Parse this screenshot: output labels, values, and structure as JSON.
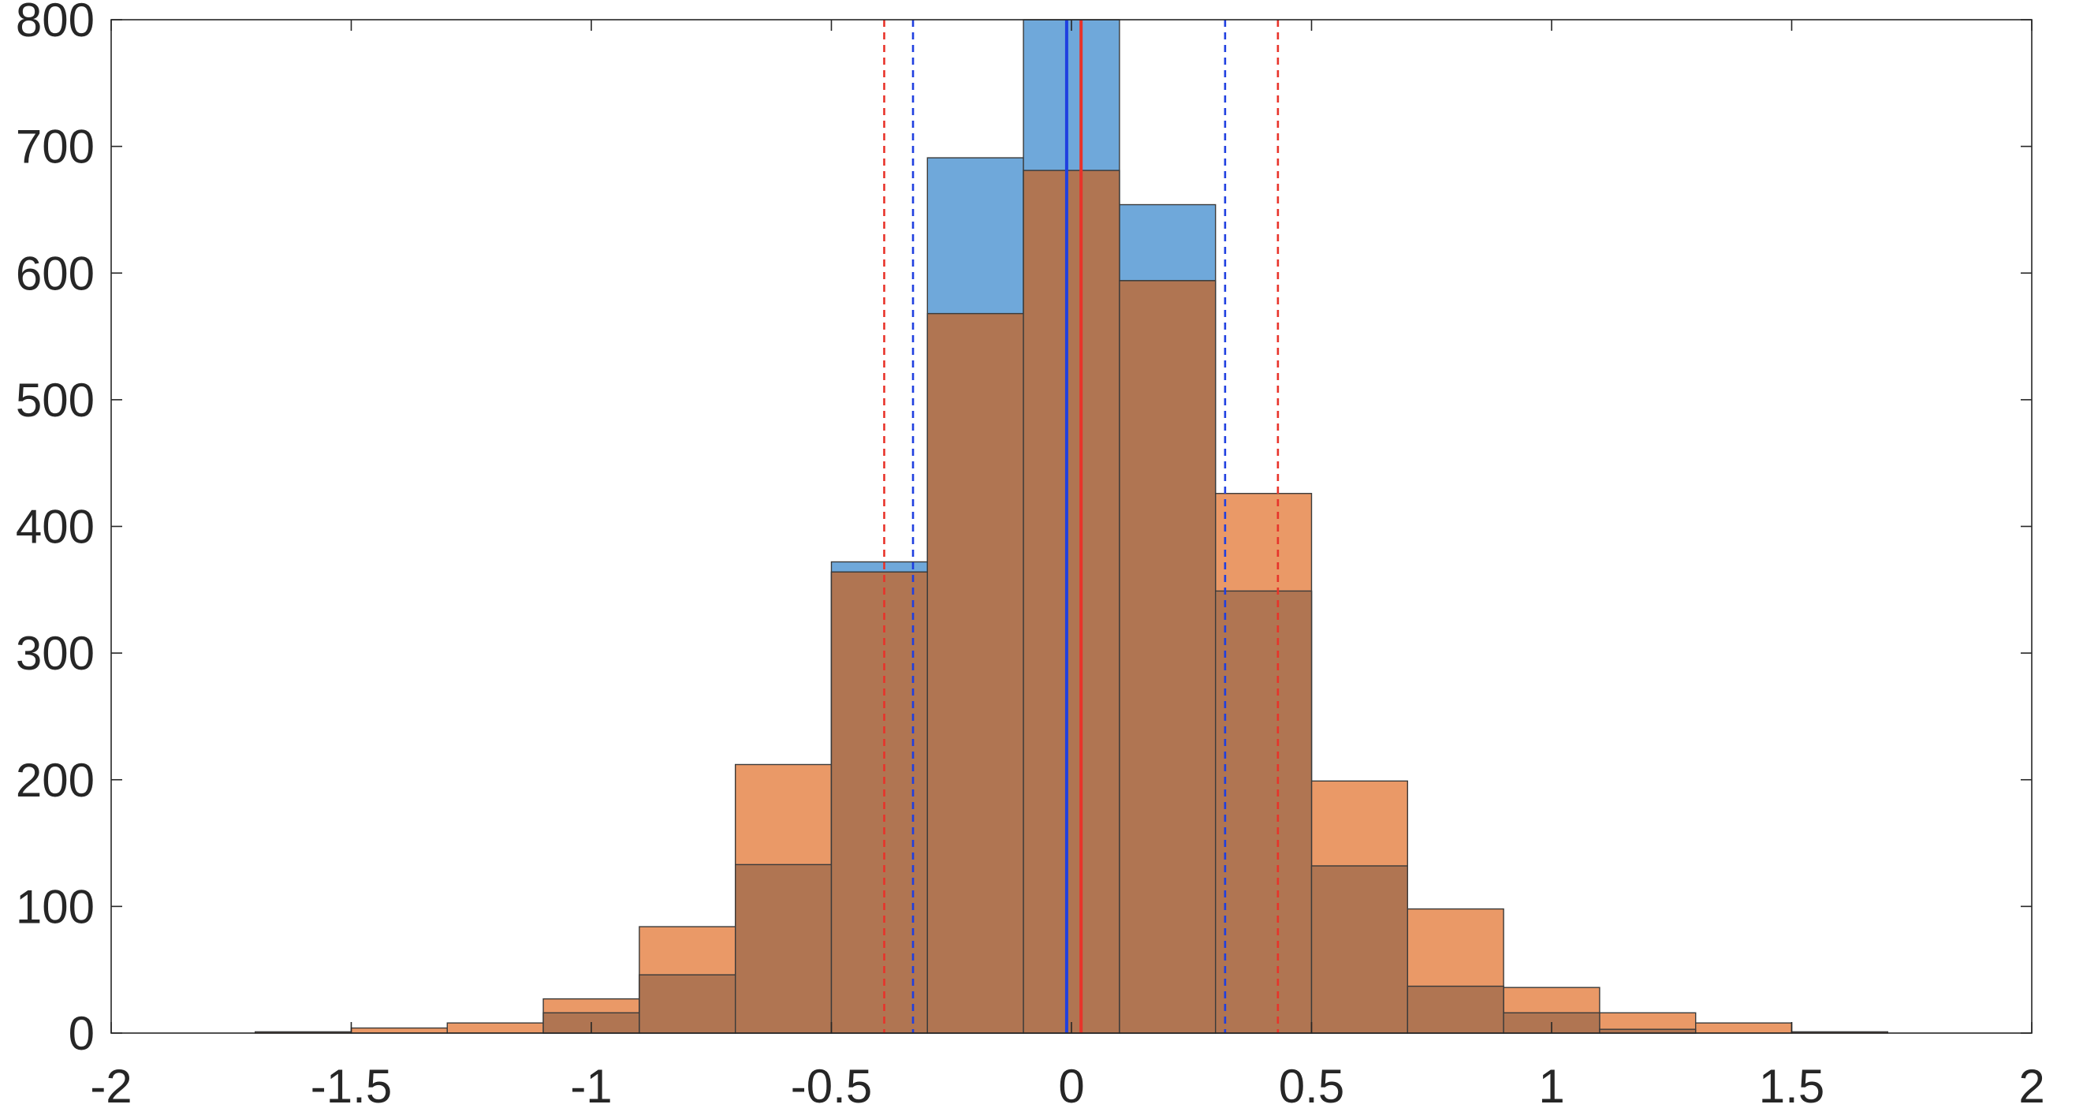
{
  "chart_data": {
    "type": "bar",
    "title": "",
    "xlabel": "",
    "ylabel": "",
    "xlim": [
      -2,
      2
    ],
    "ylim": [
      0,
      800
    ],
    "xticks": [
      -2,
      -1.5,
      -1,
      -0.5,
      0,
      0.5,
      1,
      1.5,
      2
    ],
    "xtick_labels": [
      "-2",
      "-1.5",
      "-1",
      "-0.5",
      "0",
      "0.5",
      "1",
      "1.5",
      "2"
    ],
    "yticks": [
      0,
      100,
      200,
      300,
      400,
      500,
      600,
      700,
      800
    ],
    "ytick_labels": [
      "0",
      "100",
      "200",
      "300",
      "400",
      "500",
      "600",
      "700",
      "800"
    ],
    "grid": false,
    "legend": "none",
    "bin_width": 0.2,
    "series": [
      {
        "color": "#0072BD",
        "fill_color": "#6FA8DA",
        "bin_edges": [
          -1.1,
          -0.9,
          -0.7,
          -0.5,
          -0.3,
          -0.1,
          0.1,
          0.3,
          0.5,
          0.7,
          0.9,
          1.1,
          1.3
        ],
        "counts": [
          16,
          46,
          133,
          372,
          691,
          800,
          654,
          349,
          132,
          37,
          16,
          3
        ]
      },
      {
        "color": "#D95319",
        "fill_color": "#EA9967",
        "bin_edges": [
          -1.7,
          -1.5,
          -1.3,
          -1.1,
          -0.9,
          -0.7,
          -0.5,
          -0.3,
          -0.1,
          0.1,
          0.3,
          0.5,
          0.7,
          0.9,
          1.1,
          1.3,
          1.5,
          1.7
        ],
        "counts": [
          1,
          4,
          8,
          27,
          84,
          212,
          364,
          568,
          681,
          594,
          426,
          199,
          98,
          36,
          16,
          8,
          1
        ]
      }
    ],
    "vertical_lines": [
      {
        "x": -0.01,
        "color": "#1F3FE0",
        "style": "solid"
      },
      {
        "x": 0.02,
        "color": "#E8332A",
        "style": "solid"
      },
      {
        "x": -0.33,
        "color": "#1F3FE0",
        "style": "dashed"
      },
      {
        "x": 0.32,
        "color": "#1F3FE0",
        "style": "dashed"
      },
      {
        "x": -0.39,
        "color": "#E8332A",
        "style": "dashed"
      },
      {
        "x": 0.43,
        "color": "#E8332A",
        "style": "dashed"
      }
    ],
    "overlap_color": "#B07552"
  }
}
